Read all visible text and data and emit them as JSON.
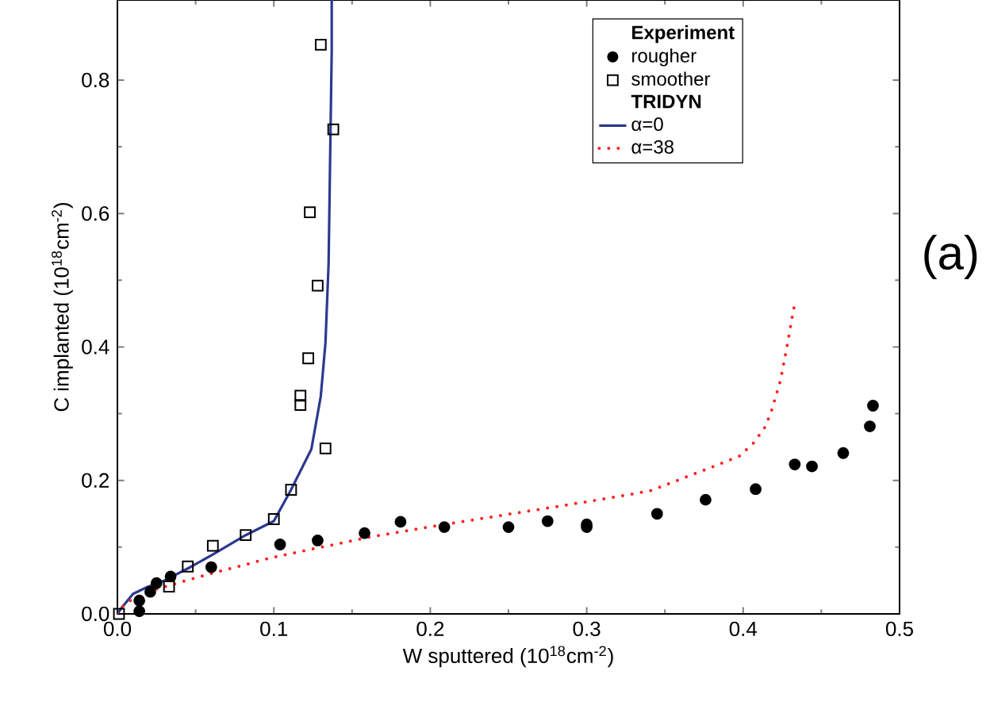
{
  "chart_data": {
    "type": "scatter",
    "xlabel": "W sputtered (10$^{18}$cm$^{-2}$)",
    "ylabel": "C implanted (10$^{18}$cm$^{-2}$)",
    "legend_title": "Experiment",
    "annotations": [
      "TRIDYN",
      "(a)"
    ],
    "xlim": [
      0,
      0.5
    ],
    "ylim": [
      0,
      0.92
    ],
    "xticks": [
      {
        "value": 0,
        "label": "0.0"
      },
      0.1,
      0.2,
      0.3,
      0.4,
      0.5
    ],
    "yticks": [
      {
        "value": 0,
        "label": "0.0"
      },
      0.2,
      0.4,
      0.6,
      0.8
    ],
    "legend": "top right",
    "grid": false,
    "series": [
      {
        "name": "rougher",
        "marker": "circle",
        "color": "#000000",
        "x": [
          0.014,
          0.014,
          0.021,
          0.025,
          0.034,
          0.06,
          0.104,
          0.128,
          0.158,
          0.181,
          0.209,
          0.25,
          0.275,
          0.3,
          0.3,
          0.345,
          0.376,
          0.408,
          0.433,
          0.444,
          0.464,
          0.481,
          0.483
        ],
        "values": [
          0.004,
          0.02,
          0.033,
          0.046,
          0.056,
          0.07,
          0.104,
          0.11,
          0.121,
          0.138,
          0.13,
          0.13,
          0.139,
          0.134,
          0.13,
          0.15,
          0.171,
          0.187,
          0.224,
          0.221,
          0.241,
          0.281,
          0.312
        ]
      },
      {
        "name": "smoother",
        "marker": "square",
        "color": "#000000",
        "x": [
          0.001,
          0.033,
          0.045,
          0.061,
          0.082,
          0.1,
          0.111,
          0.133,
          0.117,
          0.117,
          0.122,
          0.128,
          0.123,
          0.138,
          0.13
        ],
        "values": [
          0.0,
          0.041,
          0.071,
          0.102,
          0.118,
          0.142,
          0.186,
          0.248,
          0.313,
          0.327,
          0.383,
          0.492,
          0.602,
          0.726,
          0.853
        ]
      },
      {
        "name": "α=0",
        "type": "line",
        "line_style": "solid",
        "color": "#2b3990",
        "x": [
          0,
          0.003,
          0.01,
          0.019,
          0.03,
          0.045,
          0.061,
          0.082,
          0.1,
          0.111,
          0.124,
          0.13,
          0.133,
          0.135,
          0.136,
          0.137,
          0.137
        ],
        "values": [
          0,
          0.01,
          0.03,
          0.04,
          0.05,
          0.068,
          0.089,
          0.118,
          0.139,
          0.186,
          0.247,
          0.326,
          0.406,
          0.525,
          0.685,
          0.844,
          0.92
        ]
      },
      {
        "name": "α=38",
        "type": "line",
        "line_style": "dotted",
        "color": "#ff2020",
        "x": [
          0,
          0.005,
          0.019,
          0.059,
          0.1,
          0.161,
          0.209,
          0.252,
          0.3,
          0.34,
          0.378,
          0.398,
          0.407,
          0.414,
          0.418,
          0.421,
          0.424,
          0.428,
          0.431,
          0.433
        ],
        "values": [
          0,
          0.016,
          0.033,
          0.06,
          0.085,
          0.115,
          0.134,
          0.15,
          0.168,
          0.184,
          0.218,
          0.237,
          0.257,
          0.28,
          0.303,
          0.327,
          0.351,
          0.4,
          0.44,
          0.465
        ]
      }
    ]
  }
}
